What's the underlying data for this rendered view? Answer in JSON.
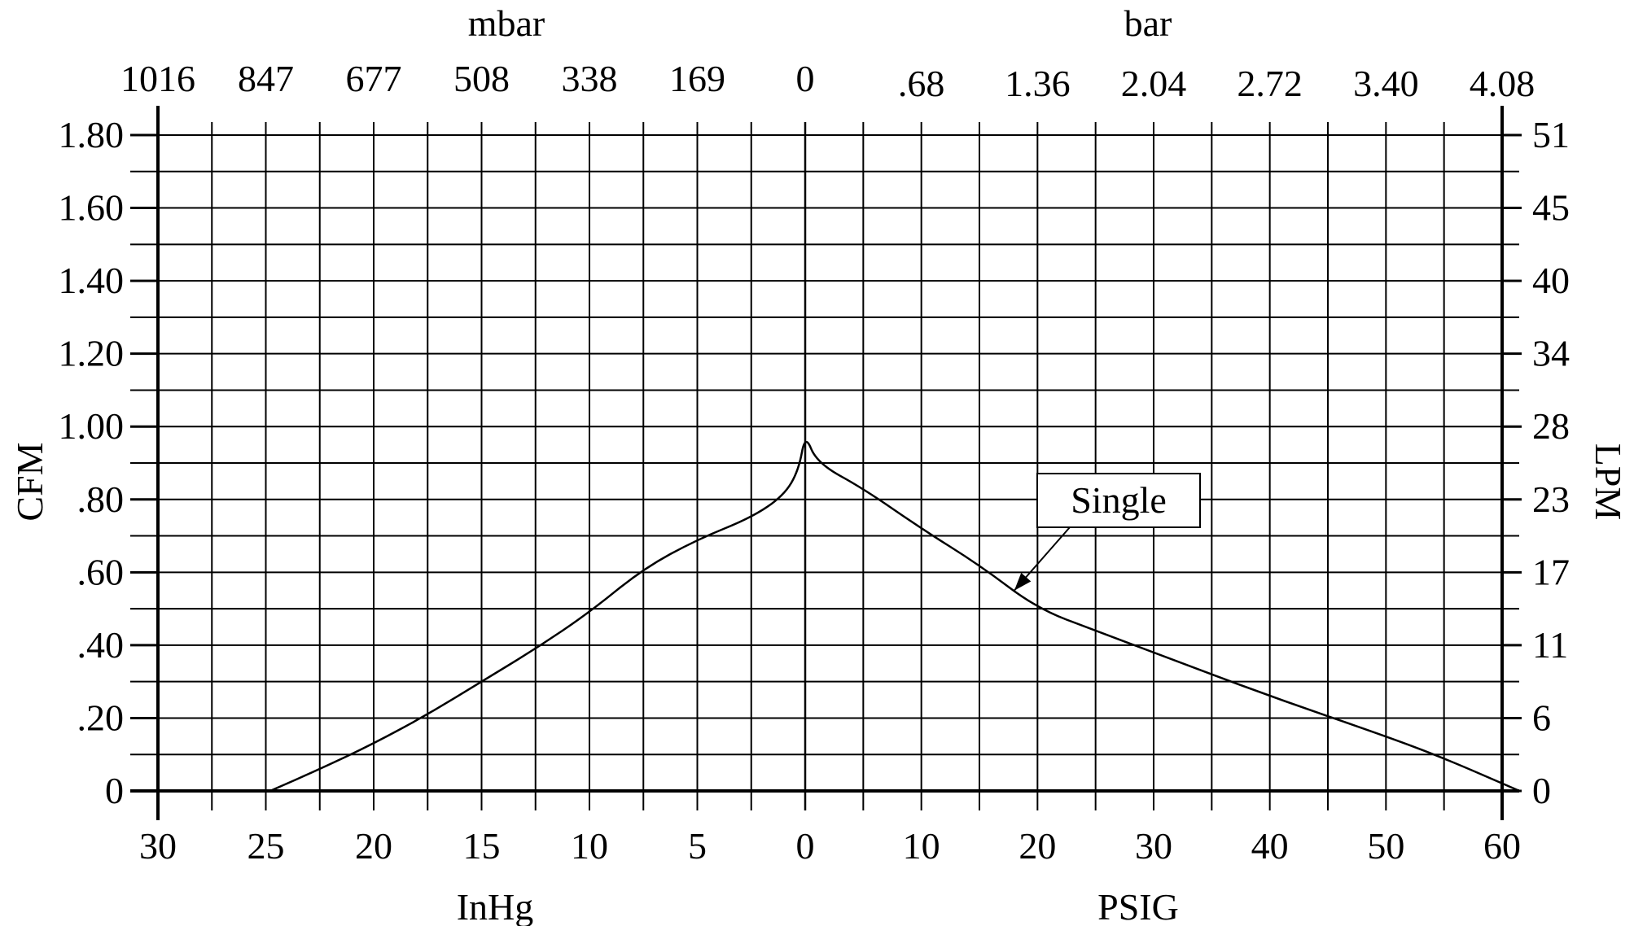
{
  "chart_data": {
    "type": "line",
    "title": "",
    "x_axis": {
      "vacuum_side": {
        "label": "InHg",
        "ticks": [
          "30",
          "25",
          "20",
          "15",
          "10",
          "5",
          "0"
        ],
        "range": [
          30,
          0
        ]
      },
      "pressure_side": {
        "label": "PSIG",
        "ticks": [
          "10",
          "20",
          "30",
          "40",
          "50",
          "60"
        ],
        "range": [
          0,
          60
        ]
      },
      "top_vacuum": {
        "label": "mbar",
        "ticks": [
          "1016",
          "847",
          "677",
          "508",
          "338",
          "169",
          "0"
        ]
      },
      "top_pressure": {
        "label": "bar",
        "ticks": [
          ".68",
          "1.36",
          "2.04",
          "2.72",
          "3.40",
          "4.08"
        ]
      }
    },
    "y_axis_left": {
      "label": "CFM",
      "ticks": [
        "0",
        ".20",
        ".40",
        ".60",
        ".80",
        "1.00",
        "1.20",
        "1.40",
        "1.60",
        "1.80"
      ],
      "range": [
        0,
        1.8
      ]
    },
    "y_axis_right": {
      "label": "LPM",
      "ticks": [
        "0",
        "6",
        "11",
        "17",
        "23",
        "28",
        "34",
        "40",
        "45",
        "51"
      ]
    },
    "grid": true,
    "series": [
      {
        "name": "Single",
        "vacuum_points": [
          {
            "inhg": 24.8,
            "cfm": 0.0
          },
          {
            "inhg": 22.5,
            "cfm": 0.06
          },
          {
            "inhg": 20.0,
            "cfm": 0.13
          },
          {
            "inhg": 17.5,
            "cfm": 0.21
          },
          {
            "inhg": 15.0,
            "cfm": 0.3
          },
          {
            "inhg": 12.5,
            "cfm": 0.39
          },
          {
            "inhg": 10.0,
            "cfm": 0.49
          },
          {
            "inhg": 7.5,
            "cfm": 0.61
          },
          {
            "inhg": 5.0,
            "cfm": 0.69
          },
          {
            "inhg": 2.5,
            "cfm": 0.75
          },
          {
            "inhg": 1.0,
            "cfm": 0.81
          },
          {
            "inhg": 0.3,
            "cfm": 0.88
          },
          {
            "inhg": 0.0,
            "cfm": 0.98
          }
        ],
        "pressure_points": [
          {
            "psig": 0.0,
            "cfm": 0.98
          },
          {
            "psig": 1.0,
            "cfm": 0.9
          },
          {
            "psig": 5.0,
            "cfm": 0.83
          },
          {
            "psig": 10.0,
            "cfm": 0.72
          },
          {
            "psig": 15.0,
            "cfm": 0.62
          },
          {
            "psig": 20.0,
            "cfm": 0.5
          },
          {
            "psig": 25.0,
            "cfm": 0.44
          },
          {
            "psig": 30.0,
            "cfm": 0.38
          },
          {
            "psig": 40.0,
            "cfm": 0.26
          },
          {
            "psig": 50.0,
            "cfm": 0.15
          },
          {
            "psig": 55.0,
            "cfm": 0.09
          },
          {
            "psig": 61.5,
            "cfm": 0.0
          }
        ]
      }
    ],
    "annotations": [
      {
        "text": "Single",
        "points_to": {
          "psig": 18,
          "cfm": 0.55
        }
      }
    ]
  }
}
